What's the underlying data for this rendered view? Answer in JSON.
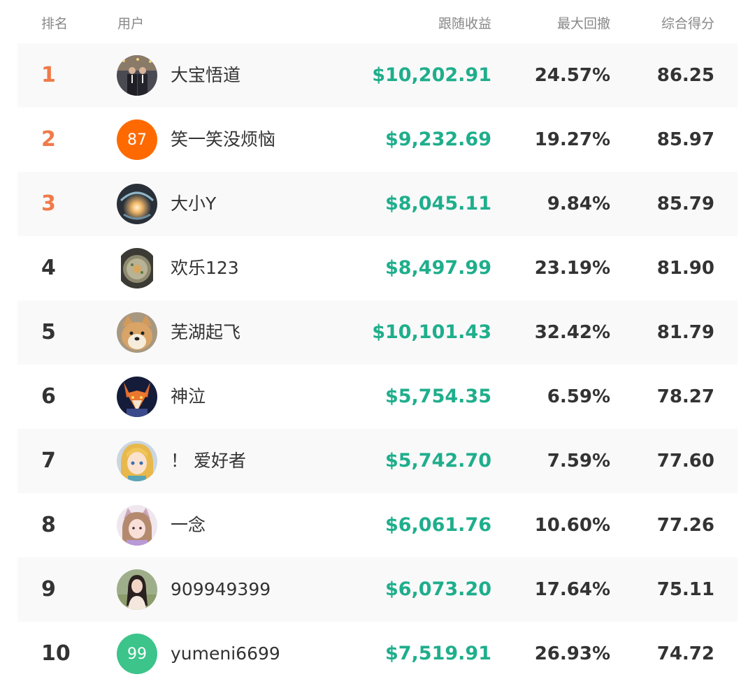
{
  "header": {
    "rank": "排名",
    "user": "用户",
    "return": "跟随收益",
    "drawdown": "最大回撤",
    "score": "综合得分"
  },
  "colors": {
    "top_rank": "#f07a4a",
    "return_green": "#1fae8c",
    "row_shade": "#f9f9f9",
    "avatar_orange": "#ff6a00",
    "avatar_green": "#3cc48a"
  },
  "rows": [
    {
      "rank": "1",
      "name": "大宝悟道",
      "return": "$10,202.91",
      "drawdown": "24.57%",
      "score": "86.25",
      "avatar_text": "",
      "avatar": "photo-two-men-avatar"
    },
    {
      "rank": "2",
      "name": "笑一笑没烦恼",
      "return": "$9,232.69",
      "drawdown": "19.27%",
      "score": "85.97",
      "avatar_text": "87",
      "avatar": "orange-number-avatar"
    },
    {
      "rank": "3",
      "name": "大小Y",
      "return": "$8,045.11",
      "drawdown": "9.84%",
      "score": "85.79",
      "avatar_text": "",
      "avatar": "glowing-orb-avatar"
    },
    {
      "rank": "4",
      "name": "欢乐123",
      "return": "$8,497.99",
      "drawdown": "23.19%",
      "score": "81.90",
      "avatar_text": "",
      "avatar": "food-bowl-avatar"
    },
    {
      "rank": "5",
      "name": "芜湖起飞",
      "return": "$10,101.43",
      "drawdown": "32.42%",
      "score": "81.79",
      "avatar_text": "",
      "avatar": "shiba-dog-avatar"
    },
    {
      "rank": "6",
      "name": "神泣",
      "return": "$5,754.35",
      "drawdown": "6.59%",
      "score": "78.27",
      "avatar_text": "",
      "avatar": "fox-art-avatar"
    },
    {
      "rank": "7",
      "name": "！ 爱好者",
      "return": "$5,742.70",
      "drawdown": "7.59%",
      "score": "77.60",
      "avatar_text": "",
      "avatar": "anime-girl-avatar"
    },
    {
      "rank": "8",
      "name": "一念",
      "return": "$6,061.76",
      "drawdown": "10.60%",
      "score": "77.26",
      "avatar_text": "",
      "avatar": "cat-ear-girl-avatar"
    },
    {
      "rank": "9",
      "name": "909949399",
      "return": "$6,073.20",
      "drawdown": "17.64%",
      "score": "75.11",
      "avatar_text": "",
      "avatar": "woman-photo-avatar"
    },
    {
      "rank": "10",
      "name": "yumeni6699",
      "return": "$7,519.91",
      "drawdown": "26.93%",
      "score": "74.72",
      "avatar_text": "99",
      "avatar": "green-number-avatar"
    }
  ]
}
